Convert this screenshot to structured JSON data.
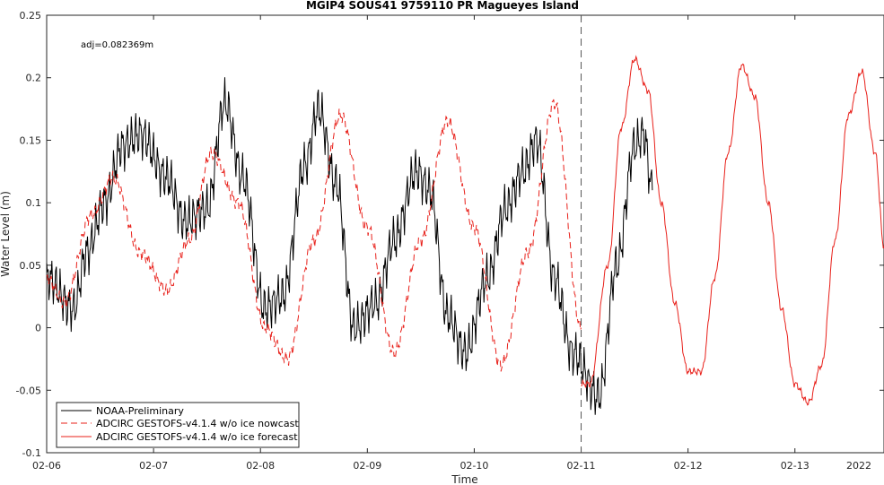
{
  "chart_data": {
    "type": "line",
    "title": "MGIP4 SOUS41 9759110 PR Magueyes Island",
    "xlabel": "Time",
    "ylabel": "Water Level (m)",
    "xlim": [
      "2022-02-06 00:00",
      "2022-02-13 20:00"
    ],
    "ylim": [
      -0.1,
      0.25
    ],
    "x_ticks": [
      "02-06",
      "02-07",
      "02-08",
      "02-09",
      "02-10",
      "02-11",
      "02-12",
      "02-13"
    ],
    "x_year_label": "2022",
    "y_ticks": [
      "-0.1",
      "-0.05",
      "0",
      "0.05",
      "0.1",
      "0.15",
      "0.2",
      "0.25"
    ],
    "y_tick_values": [
      -0.1,
      -0.05,
      0,
      0.05,
      0.1,
      0.15,
      0.2,
      0.25
    ],
    "annotation": "adj=0.082369m",
    "nowcast_forecast_boundary": "2022-02-11 00:00",
    "grid": false,
    "legend_position": "bottom-left",
    "series": [
      {
        "name": "NOAA-Preliminary",
        "color": "#000000",
        "style": "solid",
        "x": [
          "2022-02-06 00:00",
          "2022-02-06 06:00",
          "2022-02-06 09:00",
          "2022-02-06 13:00",
          "2022-02-06 17:00",
          "2022-02-06 21:00",
          "2022-02-07 03:00",
          "2022-02-07 07:00",
          "2022-02-07 12:00",
          "2022-02-07 16:00",
          "2022-02-07 20:00",
          "2022-02-08 01:00",
          "2022-02-08 05:00",
          "2022-02-08 10:00",
          "2022-02-08 13:00",
          "2022-02-08 17:00",
          "2022-02-08 21:00",
          "2022-02-09 02:00",
          "2022-02-09 06:00",
          "2022-02-09 11:00",
          "2022-02-09 14:00",
          "2022-02-09 18:00",
          "2022-02-09 22:00",
          "2022-02-10 03:00",
          "2022-02-10 07:00",
          "2022-02-10 11:00",
          "2022-02-10 14:00",
          "2022-02-10 18:00",
          "2022-02-10 22:00",
          "2022-02-11 04:00",
          "2022-02-11 08:00",
          "2022-02-11 12:00",
          "2022-02-11 14:00",
          "2022-02-11 16:00"
        ],
        "y": [
          0.04,
          0.015,
          0.06,
          0.1,
          0.145,
          0.155,
          0.12,
          0.085,
          0.095,
          0.18,
          0.12,
          0.015,
          0.025,
          0.13,
          0.175,
          0.115,
          0.0,
          0.02,
          0.07,
          0.125,
          0.11,
          0.01,
          -0.02,
          0.04,
          0.095,
          0.125,
          0.15,
          0.04,
          -0.02,
          -0.055,
          0.05,
          0.145,
          0.155,
          0.11
        ]
      },
      {
        "name": "ADCIRC GESTOFS-v4.1.4 w/o ice nowcast",
        "color": "#e8201a",
        "style": "dashed",
        "x": [
          "2022-02-06 00:00",
          "2022-02-06 04:00",
          "2022-02-06 10:00",
          "2022-02-06 15:00",
          "2022-02-06 21:00",
          "2022-02-07 03:00",
          "2022-02-07 08:00",
          "2022-02-07 13:00",
          "2022-02-07 19:00",
          "2022-02-08 01:00",
          "2022-02-08 06:00",
          "2022-02-08 12:00",
          "2022-02-08 18:00",
          "2022-02-09 00:00",
          "2022-02-09 06:00",
          "2022-02-09 12:00",
          "2022-02-09 18:00",
          "2022-02-10 00:00",
          "2022-02-10 06:00",
          "2022-02-10 12:00",
          "2022-02-10 18:00",
          "2022-02-11 00:00"
        ],
        "y": [
          0.04,
          0.02,
          0.09,
          0.12,
          0.06,
          0.03,
          0.07,
          0.14,
          0.1,
          0.0,
          -0.025,
          0.07,
          0.17,
          0.08,
          -0.02,
          0.07,
          0.165,
          0.08,
          -0.03,
          0.06,
          0.18,
          0.0
        ]
      },
      {
        "name": "ADCIRC GESTOFS-v4.1.4 w/o ice forecast",
        "color": "#e8201a",
        "style": "solid",
        "x": [
          "2022-02-11 00:00",
          "2022-02-11 02:00",
          "2022-02-11 06:00",
          "2022-02-11 09:00",
          "2022-02-11 12:00",
          "2022-02-11 15:00",
          "2022-02-11 18:00",
          "2022-02-11 21:00",
          "2022-02-12 00:00",
          "2022-02-12 03:00",
          "2022-02-12 06:00",
          "2022-02-12 09:00",
          "2022-02-12 12:00",
          "2022-02-12 15:00",
          "2022-02-12 18:00",
          "2022-02-12 21:00",
          "2022-02-13 00:00",
          "2022-02-13 03:00",
          "2022-02-13 06:00",
          "2022-02-13 09:00",
          "2022-02-13 12:00",
          "2022-02-13 15:00",
          "2022-02-13 18:00",
          "2022-02-13 20:00"
        ],
        "y": [
          -0.045,
          -0.045,
          0.05,
          0.16,
          0.215,
          0.19,
          0.1,
          0.02,
          -0.035,
          -0.035,
          0.04,
          0.14,
          0.21,
          0.185,
          0.1,
          0.015,
          -0.045,
          -0.06,
          -0.03,
          0.07,
          0.17,
          0.205,
          0.14,
          0.065
        ]
      }
    ]
  }
}
